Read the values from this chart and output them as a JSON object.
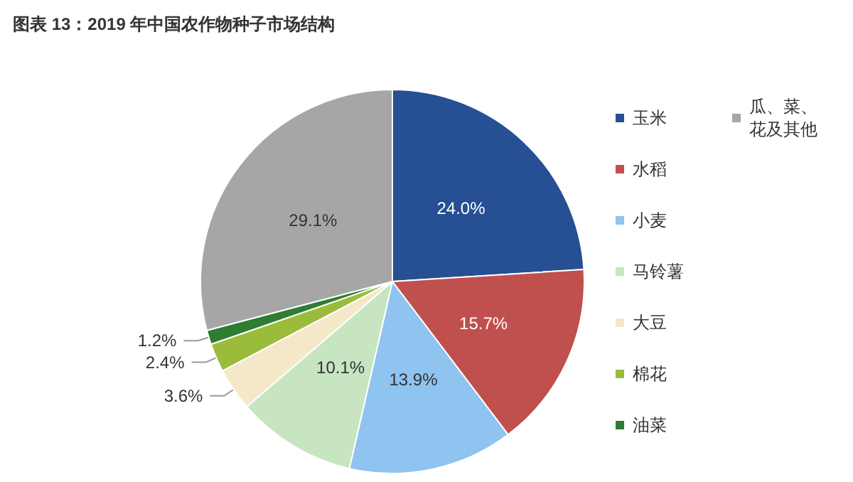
{
  "chart_data": {
    "type": "pie",
    "title": "图表 13：2019 年中国农作物种子市场结构",
    "categories": [
      "玉米",
      "水稻",
      "小麦",
      "马铃薯",
      "大豆",
      "棉花",
      "油菜",
      "瓜、菜、花及其他"
    ],
    "values": [
      24.0,
      15.7,
      13.9,
      10.1,
      3.6,
      2.4,
      1.2,
      29.1
    ],
    "value_labels": [
      "24.0%",
      "15.7%",
      "13.9%",
      "10.1%",
      "3.6%",
      "2.4%",
      "1.2%",
      "29.1%"
    ],
    "colors": [
      "#264f94",
      "#c0504d",
      "#8fc3f0",
      "#c6e5c0",
      "#f5e8c8",
      "#9bbb3b",
      "#2e7d32",
      "#a6a6a6"
    ],
    "legend": "right"
  }
}
